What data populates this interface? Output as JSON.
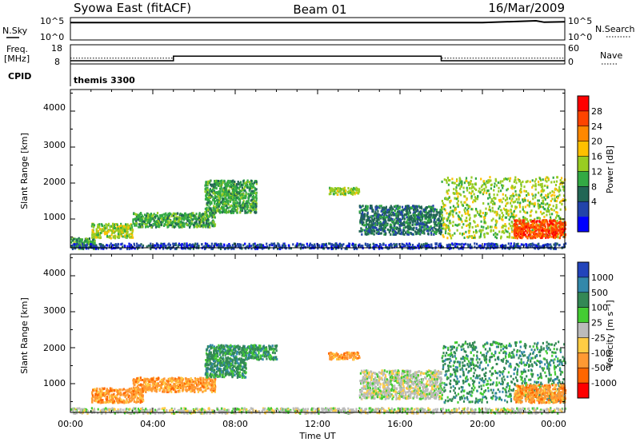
{
  "header": {
    "title": "Syowa East (fitACF)",
    "beam": "Beam 01",
    "date": "16/Mar/2009"
  },
  "nsky_panel": {
    "left_label": "N.Sky",
    "right_label": "N.Search",
    "left_ticks": [
      "10^5",
      "10^0"
    ],
    "right_ticks": [
      "10^5",
      "10^0"
    ]
  },
  "freq_panel": {
    "left_label_1": "Freq.",
    "left_label_2": "[MHz]",
    "right_label": "Nave",
    "left_ticks": [
      "18",
      "8"
    ],
    "right_ticks": [
      "60",
      "0"
    ]
  },
  "cpid": {
    "label": "CPID",
    "value": "themis 3300"
  },
  "power_panel": {
    "ylabel": "Slant Range [km]",
    "yticks": [
      "4000",
      "3000",
      "2000",
      "1000"
    ],
    "colorbar_label": "Power [dB]",
    "colorbar_ticks": [
      "28",
      "24",
      "20",
      "16",
      "12",
      "8",
      "4"
    ],
    "colorbar_colors": [
      "#ff0000",
      "#ff4400",
      "#ff8800",
      "#ffc000",
      "#99cc22",
      "#33aa44",
      "#226655",
      "#2244aa",
      "#0000ff"
    ]
  },
  "velocity_panel": {
    "ylabel": "Slant Range [km]",
    "yticks": [
      "4000",
      "3000",
      "2000",
      "1000"
    ],
    "colorbar_label": "Velocity  [m s⁻¹]",
    "colorbar_ticks": [
      "1000",
      "500",
      "100",
      "25",
      "-25",
      "-100",
      "-500",
      "-1000"
    ],
    "colorbar_colors": [
      "#2244bb",
      "#3388aa",
      "#338855",
      "#44cc33",
      "#bbbbbb",
      "#ffcc44",
      "#ff9933",
      "#ff6600",
      "#ff0000"
    ]
  },
  "x_axis": {
    "label": "Time UT",
    "ticks": [
      "00:00",
      "04:00",
      "08:00",
      "12:00",
      "16:00",
      "20:00",
      "00:00"
    ]
  },
  "chart_data": [
    {
      "type": "line",
      "title": "N.Sky / N.Search",
      "x_range_hours": [
        0,
        24
      ],
      "series": [
        {
          "values_hours": [
            0,
            4,
            8,
            12,
            16,
            20,
            22.6,
            23,
            24
          ],
          "values": [
            30000,
            30000,
            30000,
            30000,
            30000,
            30000,
            100000,
            40000,
            50000
          ]
        }
      ]
    },
    {
      "type": "line",
      "title": "Freq. / Nave",
      "xlabel": "Time UT",
      "ylabel": "Freq. [MHz]",
      "x_range_hours": [
        0,
        24
      ],
      "ylim": [
        8,
        18
      ],
      "series": [
        {
          "x": [
            0,
            5,
            5,
            18,
            18,
            24
          ],
          "values": [
            10.0,
            10.0,
            12.9,
            12.9,
            10.0,
            10.0
          ]
        },
        {
          "x": [
            0,
            5,
            5,
            18,
            18,
            24
          ],
          "values": [
            18,
            18,
            24,
            24,
            18,
            18
          ]
        }
      ]
    },
    {
      "type": "heatmap",
      "title": "Power [dB]",
      "xlabel": "Time UT",
      "ylabel": "Slant Range [km]",
      "x_range_hours": [
        0,
        24
      ],
      "ylim": [
        200,
        4600
      ],
      "zlim": [
        0,
        32
      ],
      "clusters": [
        {
          "t0": 0.0,
          "t1": 1.2,
          "r0": 200,
          "r1": 500,
          "z": 14
        },
        {
          "t0": 1.0,
          "t1": 3.0,
          "r0": 500,
          "r1": 900,
          "z": 18
        },
        {
          "t0": 3.0,
          "t1": 7.0,
          "r0": 800,
          "r1": 1200,
          "z": 12
        },
        {
          "t0": 6.5,
          "t1": 9.0,
          "r0": 1200,
          "r1": 2100,
          "z": 14
        },
        {
          "t0": 12.5,
          "t1": 14.0,
          "r0": 1700,
          "r1": 1900,
          "z": 17
        },
        {
          "t0": 14.0,
          "t1": 18.0,
          "r0": 600,
          "r1": 1400,
          "z": 10
        },
        {
          "t0": 18.0,
          "t1": 24.0,
          "r0": 500,
          "r1": 2200,
          "z": 15
        },
        {
          "t0": 21.5,
          "t1": 24.0,
          "r0": 500,
          "r1": 1000,
          "z": 27
        },
        {
          "t0": 0.0,
          "t1": 24.0,
          "r0": 200,
          "r1": 350,
          "z": 6
        }
      ]
    },
    {
      "type": "heatmap",
      "title": "Velocity [m s⁻¹]",
      "xlabel": "Time UT",
      "ylabel": "Slant Range [km]",
      "x_range_hours": [
        0,
        24
      ],
      "ylim": [
        200,
        4600
      ],
      "zlim": [
        -1000,
        1000
      ],
      "clusters": [
        {
          "t0": 1.0,
          "t1": 3.5,
          "r0": 500,
          "r1": 900,
          "z": -300
        },
        {
          "t0": 3.0,
          "t1": 7.0,
          "r0": 800,
          "r1": 1200,
          "z": -300
        },
        {
          "t0": 6.5,
          "t1": 8.5,
          "r0": 1200,
          "r1": 2100,
          "z": 200
        },
        {
          "t0": 8.5,
          "t1": 10.0,
          "r0": 1700,
          "r1": 2100,
          "z": 300
        },
        {
          "t0": 12.5,
          "t1": 14.0,
          "r0": 1700,
          "r1": 1900,
          "z": -400
        },
        {
          "t0": 14.0,
          "t1": 18.0,
          "r0": 600,
          "r1": 1400,
          "z": 0
        },
        {
          "t0": 18.0,
          "t1": 24.0,
          "r0": 500,
          "r1": 2200,
          "z": 150
        },
        {
          "t0": 21.5,
          "t1": 24.0,
          "r0": 500,
          "r1": 1000,
          "z": -200
        },
        {
          "t0": 0.0,
          "t1": 24.0,
          "r0": 200,
          "r1": 350,
          "z": 0
        }
      ]
    }
  ]
}
